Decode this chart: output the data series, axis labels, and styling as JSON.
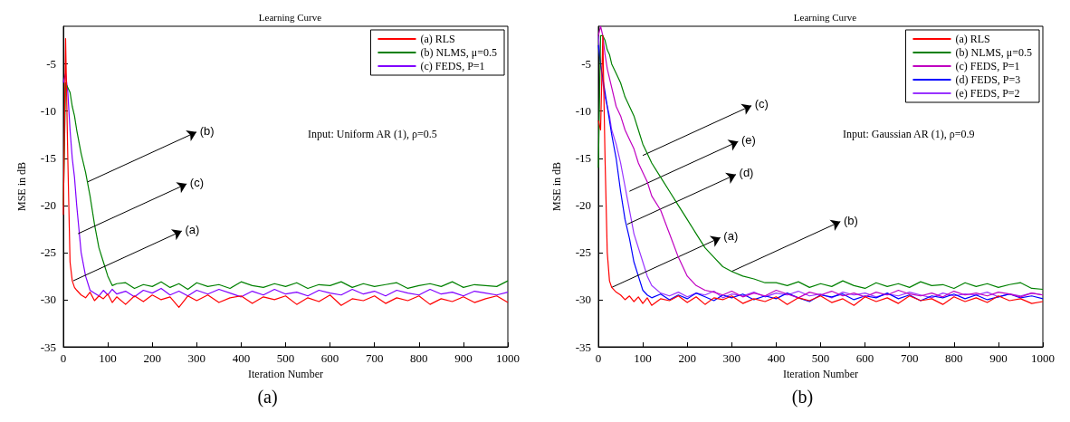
{
  "chart_data": [
    {
      "type": "line",
      "title": "Learning Curve",
      "xlabel": "Iteration Number",
      "ylabel": "MSE in dB",
      "legend": "top right",
      "marker": "none",
      "xlim": [
        0,
        1000
      ],
      "xticks": [
        0,
        100,
        200,
        300,
        400,
        500,
        600,
        700,
        800,
        900,
        1000
      ],
      "ylim": [
        -35,
        -1
      ],
      "yticks": [
        -35,
        -30,
        -25,
        -20,
        -15,
        -10,
        -5
      ],
      "annotations": [
        "Input: Uniform AR (1), ρ=0.5",
        "(a)",
        {
          "text": "(b)",
          "x": 55,
          "y": -17.5
        },
        {
          "text": "(c)",
          "x": 33,
          "y": -23
        },
        {
          "text": "(a)",
          "x": 22,
          "y": -28
        }
      ],
      "x": [
        0,
        5,
        10,
        15,
        20,
        25,
        30,
        40,
        50,
        60,
        70,
        80,
        90,
        100,
        110,
        120,
        140,
        160,
        180,
        200,
        220,
        240,
        260,
        280,
        300,
        325,
        350,
        375,
        400,
        425,
        450,
        475,
        500,
        525,
        550,
        575,
        600,
        625,
        650,
        675,
        700,
        725,
        750,
        775,
        800,
        825,
        850,
        875,
        900,
        925,
        950,
        975,
        1000
      ],
      "series": [
        {
          "name": "(a) RLS",
          "color": "#ff0000",
          "values": [
            -21,
            -2.3,
            -15,
            -26,
            -28,
            -28.7,
            -29,
            -29.5,
            -29.8,
            -29.2,
            -30.1,
            -29.6,
            -29.9,
            -29.4,
            -30.3,
            -29.7,
            -30.5,
            -29.6,
            -30.2,
            -29.5,
            -30,
            -29.7,
            -30.8,
            -29.6,
            -30.1,
            -29.5,
            -30.3,
            -29.8,
            -29.6,
            -30.4,
            -29.7,
            -30,
            -29.6,
            -30.5,
            -29.8,
            -30.2,
            -29.5,
            -30.6,
            -29.9,
            -30.1,
            -29.6,
            -30.4,
            -29.8,
            -30.1,
            -29.6,
            -30.5,
            -29.9,
            -30.2,
            -29.7,
            -30.3,
            -29.9,
            -29.6,
            -30.3
          ]
        },
        {
          "name": "(b) NLMS, μ=0.5",
          "color": "#008000",
          "values": [
            -20,
            -7,
            -7.5,
            -8,
            -9.5,
            -10.5,
            -12,
            -14.5,
            -16.5,
            -19,
            -22,
            -24.5,
            -26,
            -27.5,
            -28.5,
            -28.3,
            -28.2,
            -28.8,
            -28.4,
            -28.6,
            -28.1,
            -28.7,
            -28.3,
            -28.9,
            -28.2,
            -28.6,
            -28.4,
            -28.8,
            -28.1,
            -28.5,
            -28.7,
            -28.3,
            -28.6,
            -28.2,
            -28.8,
            -28.4,
            -28.5,
            -28.1,
            -28.7,
            -28.3,
            -28.6,
            -28.4,
            -28.2,
            -28.8,
            -28.5,
            -28.3,
            -28.6,
            -28.1,
            -28.7,
            -28.4,
            -28.5,
            -28.6,
            -28.0
          ]
        },
        {
          "name": "(c) FEDS, P=1",
          "color": "#8000ff",
          "values": [
            -7,
            -6,
            -8,
            -12,
            -15,
            -17,
            -20,
            -25,
            -27.5,
            -29,
            -29.3,
            -29.6,
            -29,
            -29.5,
            -28.9,
            -29.4,
            -29.1,
            -29.7,
            -29,
            -29.3,
            -28.8,
            -29.5,
            -29.1,
            -29.6,
            -29,
            -29.4,
            -28.9,
            -29.3,
            -29.7,
            -29.1,
            -29.5,
            -28.9,
            -29.4,
            -29.2,
            -29.6,
            -29,
            -29.3,
            -29.5,
            -28.9,
            -29.4,
            -29.1,
            -29.6,
            -29,
            -29.3,
            -29.5,
            -28.9,
            -29.4,
            -29.2,
            -29.6,
            -29.1,
            -29.3,
            -29.5,
            -29.2
          ]
        }
      ]
    },
    {
      "type": "line",
      "title": "Learning Curve",
      "xlabel": "Iteration Number",
      "ylabel": "MSE in dB",
      "legend": "top right",
      "marker": "none",
      "xlim": [
        0,
        1000
      ],
      "xticks": [
        0,
        100,
        200,
        300,
        400,
        500,
        600,
        700,
        800,
        900,
        1000
      ],
      "ylim": [
        -35,
        -1
      ],
      "yticks": [
        -35,
        -30,
        -25,
        -20,
        -15,
        -10,
        -5
      ],
      "annotations": [
        "Input: Gaussian AR (1), ρ=0.9",
        "(b)",
        {
          "text": "(c)",
          "x": 100,
          "y": -14.7
        },
        {
          "text": "(e)",
          "x": 70,
          "y": -18.5
        },
        {
          "text": "(d)",
          "x": 65,
          "y": -22
        },
        {
          "text": "(a)",
          "x": 30,
          "y": -28.7
        },
        {
          "text": "(b)",
          "x": 300,
          "y": -27
        }
      ],
      "x": [
        0,
        5,
        10,
        15,
        20,
        25,
        30,
        40,
        50,
        60,
        70,
        80,
        90,
        100,
        110,
        120,
        140,
        160,
        180,
        200,
        220,
        240,
        260,
        280,
        300,
        325,
        350,
        375,
        400,
        425,
        450,
        475,
        500,
        525,
        550,
        575,
        600,
        625,
        650,
        675,
        700,
        725,
        750,
        775,
        800,
        825,
        850,
        875,
        900,
        925,
        950,
        975,
        1000
      ],
      "series": [
        {
          "name": "(a) RLS",
          "color": "#ff0000",
          "values": [
            -11,
            -12,
            -2,
            -15,
            -25,
            -28,
            -28.7,
            -29.2,
            -29.5,
            -30,
            -29.6,
            -30.2,
            -29.7,
            -30.4,
            -29.8,
            -30.6,
            -29.9,
            -30.1,
            -29.6,
            -30.3,
            -29.7,
            -30.5,
            -29.8,
            -30,
            -29.6,
            -30.4,
            -29.9,
            -30.2,
            -29.7,
            -30.5,
            -29.8,
            -30.1,
            -29.6,
            -30.3,
            -29.9,
            -30.6,
            -29.7,
            -30.2,
            -29.8,
            -30.4,
            -29.6,
            -30.1,
            -29.9,
            -30.5,
            -29.7,
            -30.2,
            -29.8,
            -30.3,
            -29.6,
            -30.1,
            -29.9,
            -30.4,
            -30.2
          ]
        },
        {
          "name": "(b) NLMS, μ=0.5",
          "color": "#008000",
          "values": [
            -16,
            -2,
            -2,
            -2.5,
            -3.5,
            -4,
            -5,
            -6,
            -7,
            -8.5,
            -9.5,
            -10.5,
            -12,
            -13.5,
            -14.5,
            -15.5,
            -17,
            -18.5,
            -20,
            -21.5,
            -23,
            -24.5,
            -25.5,
            -26.5,
            -27,
            -27.5,
            -27.8,
            -28.2,
            -28.2,
            -28.5,
            -28.1,
            -28.7,
            -28.3,
            -28.6,
            -28,
            -28.5,
            -28.8,
            -28.2,
            -28.6,
            -28.3,
            -28.7,
            -28.1,
            -28.5,
            -28.4,
            -28.8,
            -28.2,
            -28.6,
            -28.3,
            -28.7,
            -28.4,
            -28.2,
            -28.8,
            -28.9
          ]
        },
        {
          "name": "(c) FEDS, P=1",
          "color": "#c000c0",
          "values": [
            -2,
            -1,
            -2,
            -4,
            -5.5,
            -6.5,
            -7.5,
            -9.5,
            -10.5,
            -12,
            -13,
            -14,
            -15.5,
            -16.5,
            -17.5,
            -19,
            -20.5,
            -23,
            -25.5,
            -27.5,
            -28.5,
            -29,
            -29.2,
            -29.5,
            -29.1,
            -29.7,
            -29.3,
            -29.6,
            -29,
            -29.4,
            -29.8,
            -29.2,
            -29.5,
            -29.1,
            -29.6,
            -29.3,
            -29.7,
            -29.2,
            -29.5,
            -29,
            -29.4,
            -29.6,
            -29.3,
            -29.7,
            -29.1,
            -29.5,
            -29.3,
            -29.6,
            -29.2,
            -29.4,
            -29.7,
            -29.3,
            -29.5
          ]
        },
        {
          "name": "(d) FEDS, P=3",
          "color": "#0000ff",
          "values": [
            -3,
            -5,
            -6.5,
            -8,
            -9.5,
            -11,
            -12.5,
            -15,
            -18.5,
            -21.5,
            -23.5,
            -26,
            -27.5,
            -29,
            -29.5,
            -29.8,
            -29.4,
            -30,
            -29.5,
            -29.9,
            -29.3,
            -29.7,
            -30.1,
            -29.5,
            -29.8,
            -29.4,
            -30,
            -29.6,
            -29.9,
            -29.3,
            -29.8,
            -30.2,
            -29.5,
            -29.7,
            -29.4,
            -30,
            -29.6,
            -29.8,
            -29.3,
            -29.9,
            -29.5,
            -30.1,
            -29.6,
            -29.8,
            -29.4,
            -29.9,
            -29.5,
            -30,
            -29.7,
            -29.4,
            -29.8,
            -29.6,
            -29.9
          ]
        },
        {
          "name": "(e) FEDS, P=2",
          "color": "#9933ff",
          "values": [
            -2,
            -5,
            -7,
            -8.5,
            -9.5,
            -10.5,
            -12,
            -13.5,
            -15.5,
            -18,
            -20.5,
            -23,
            -24.5,
            -26,
            -27.5,
            -28.5,
            -29.3,
            -29.6,
            -29.2,
            -29.7,
            -29.3,
            -29.5,
            -29.1,
            -29.8,
            -29.4,
            -29.6,
            -29.2,
            -29.7,
            -29.3,
            -29.5,
            -29.1,
            -29.6,
            -29.4,
            -29.8,
            -29.2,
            -29.5,
            -29.3,
            -29.7,
            -29.4,
            -29.6,
            -29.2,
            -29.5,
            -29.8,
            -29.3,
            -29.6,
            -29.4,
            -29.5,
            -29.2,
            -29.7,
            -29.4,
            -29.6,
            -29.3,
            -29.5
          ]
        }
      ]
    }
  ]
}
